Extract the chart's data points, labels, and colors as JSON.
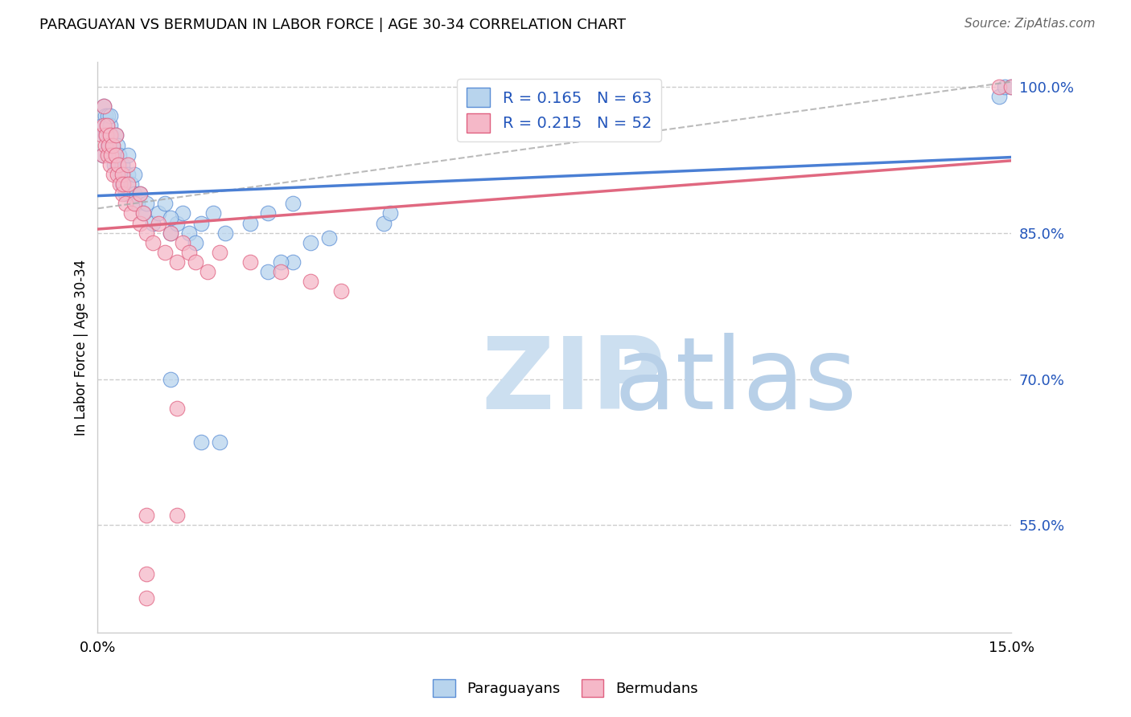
{
  "title": "PARAGUAYAN VS BERMUDAN IN LABOR FORCE | AGE 30-34 CORRELATION CHART",
  "source": "Source: ZipAtlas.com",
  "ylabel": "In Labor Force | Age 30-34",
  "xlim": [
    0.0,
    0.15
  ],
  "ylim": [
    0.44,
    1.025
  ],
  "ytick_vals": [
    0.55,
    0.7,
    0.85,
    1.0
  ],
  "ytick_labels": [
    "55.0%",
    "70.0%",
    "85.0%",
    "100.0%"
  ],
  "xtick_vals": [
    0.0,
    0.15
  ],
  "xtick_labels": [
    "0.0%",
    "15.0%"
  ],
  "paraguayan_R": 0.165,
  "paraguayan_N": 63,
  "bermudan_R": 0.215,
  "bermudan_N": 52,
  "paraguayan_fill": "#b8d4ed",
  "paraguayan_edge": "#5b8ed6",
  "bermudan_fill": "#f5b8c8",
  "bermudan_edge": "#e06080",
  "reg_blue": "#4a7fd4",
  "reg_pink": "#e06880",
  "dash_color": "#aaaaaa",
  "watermark_zip_color": "#ccdff0",
  "watermark_atlas_color": "#b8d0e8",
  "title_fontsize": 13,
  "source_fontsize": 11,
  "ylabel_fontsize": 12,
  "tick_fontsize": 13,
  "legend_fontsize": 14,
  "marker_size": 180,
  "par_x": [
    0.0008,
    0.0009,
    0.001,
    0.0012,
    0.0013,
    0.0015,
    0.0016,
    0.0017,
    0.0018,
    0.002,
    0.002,
    0.002,
    0.0022,
    0.0023,
    0.0025,
    0.0027,
    0.003,
    0.003,
    0.0032,
    0.0033,
    0.0035,
    0.0037,
    0.004,
    0.004,
    0.0042,
    0.0045,
    0.005,
    0.005,
    0.0055,
    0.006,
    0.006,
    0.0065,
    0.007,
    0.0075,
    0.008,
    0.009,
    0.01,
    0.011,
    0.012,
    0.013,
    0.014,
    0.015,
    0.017,
    0.019,
    0.021,
    0.025,
    0.028,
    0.032,
    0.047,
    0.048,
    0.012,
    0.017,
    0.02,
    0.035,
    0.038,
    0.012,
    0.016,
    0.148,
    0.149,
    0.15,
    0.032,
    0.03,
    0.028
  ],
  "par_y": [
    0.96,
    0.93,
    0.98,
    0.97,
    0.95,
    0.96,
    0.94,
    0.97,
    0.95,
    0.96,
    0.97,
    0.94,
    0.95,
    0.93,
    0.94,
    0.92,
    0.93,
    0.95,
    0.92,
    0.94,
    0.93,
    0.91,
    0.92,
    0.9,
    0.91,
    0.89,
    0.91,
    0.93,
    0.9,
    0.89,
    0.91,
    0.88,
    0.89,
    0.87,
    0.88,
    0.86,
    0.87,
    0.88,
    0.85,
    0.86,
    0.87,
    0.85,
    0.86,
    0.87,
    0.85,
    0.86,
    0.87,
    0.88,
    0.86,
    0.87,
    0.7,
    0.635,
    0.635,
    0.84,
    0.845,
    0.865,
    0.84,
    0.99,
    1.0,
    1.0,
    0.82,
    0.82,
    0.81
  ],
  "ber_x": [
    0.0007,
    0.0009,
    0.001,
    0.001,
    0.0012,
    0.0014,
    0.0015,
    0.0016,
    0.0018,
    0.002,
    0.002,
    0.0022,
    0.0024,
    0.0026,
    0.003,
    0.003,
    0.0032,
    0.0034,
    0.0036,
    0.004,
    0.004,
    0.0042,
    0.0046,
    0.005,
    0.005,
    0.0055,
    0.006,
    0.007,
    0.007,
    0.0075,
    0.008,
    0.009,
    0.01,
    0.011,
    0.012,
    0.013,
    0.014,
    0.015,
    0.016,
    0.018,
    0.02,
    0.025,
    0.03,
    0.035,
    0.04,
    0.008,
    0.013,
    0.013,
    0.008,
    0.008,
    0.148,
    0.15
  ],
  "ber_y": [
    0.95,
    0.93,
    0.96,
    0.98,
    0.94,
    0.95,
    0.96,
    0.93,
    0.94,
    0.95,
    0.92,
    0.93,
    0.94,
    0.91,
    0.93,
    0.95,
    0.91,
    0.92,
    0.9,
    0.91,
    0.89,
    0.9,
    0.88,
    0.9,
    0.92,
    0.87,
    0.88,
    0.86,
    0.89,
    0.87,
    0.85,
    0.84,
    0.86,
    0.83,
    0.85,
    0.82,
    0.84,
    0.83,
    0.82,
    0.81,
    0.83,
    0.82,
    0.81,
    0.8,
    0.79,
    0.56,
    0.67,
    0.56,
    0.5,
    0.475,
    1.0,
    1.0
  ]
}
